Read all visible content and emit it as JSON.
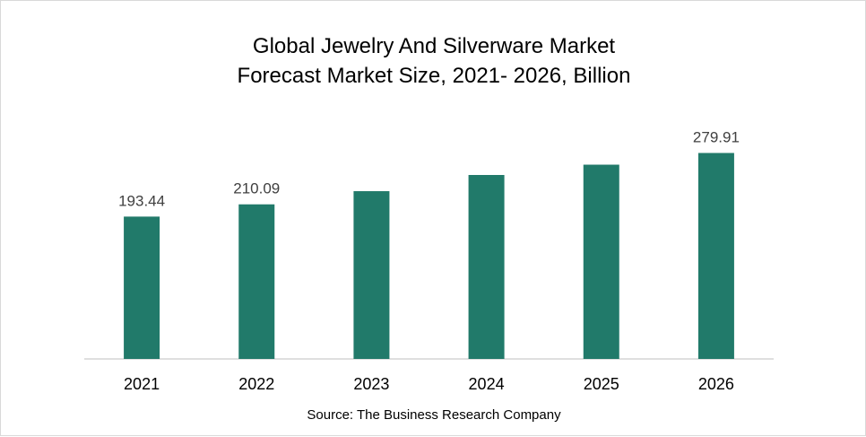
{
  "chart_data": {
    "type": "bar",
    "title_lines": [
      "Global Jewelry And Silverware Market",
      "Forecast Market Size, 2021- 2026, Billion"
    ],
    "categories": [
      "2021",
      "2022",
      "2023",
      "2024",
      "2025",
      "2026"
    ],
    "values": [
      193.44,
      210.09,
      228.0,
      250.0,
      264.0,
      279.91
    ],
    "data_labels": [
      "193.44",
      "210.09",
      "",
      "",
      "",
      "279.91"
    ],
    "ylim": [
      0,
      300
    ],
    "grid": false,
    "bar_color": "#217a6a",
    "axis_color": "#bfbfbf",
    "xlabel": "",
    "ylabel": ""
  },
  "source": "Source: The Business Research Company"
}
